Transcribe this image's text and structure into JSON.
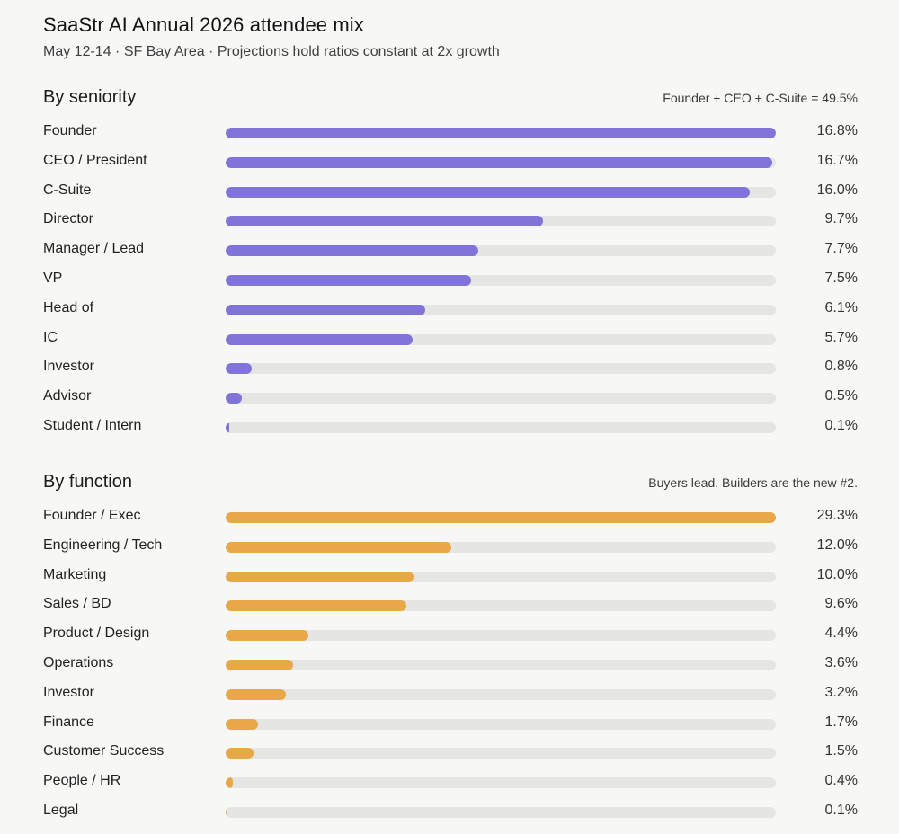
{
  "header": {
    "title": "SaaStr AI Annual 2026 attendee mix",
    "subtitle": "May 12-14 · SF Bay Area · Projections hold ratios constant at 2x growth"
  },
  "colors": {
    "seniority_bar": "#8174d9",
    "function_bar": "#e8a848",
    "track": "#e5e5e3"
  },
  "chart_data": [
    {
      "type": "bar",
      "orientation": "horizontal",
      "title": "By seniority",
      "note": "Founder + CEO + C-Suite = 49.5%",
      "unit": "%",
      "categories": [
        "Founder",
        "CEO / President",
        "C-Suite",
        "Director",
        "Manager / Lead",
        "VP",
        "Head of",
        "IC",
        "Investor",
        "Advisor",
        "Student / Intern"
      ],
      "values": [
        16.8,
        16.7,
        16.0,
        9.7,
        7.7,
        7.5,
        6.1,
        5.7,
        0.8,
        0.5,
        0.1
      ],
      "value_labels": [
        "16.8%",
        "16.7%",
        "16.0%",
        "9.7%",
        "7.7%",
        "7.5%",
        "6.1%",
        "5.7%",
        "0.8%",
        "0.5%",
        "0.1%"
      ],
      "xlim": [
        0,
        16.8
      ]
    },
    {
      "type": "bar",
      "orientation": "horizontal",
      "title": "By function",
      "note": "Buyers lead. Builders are the new #2.",
      "unit": "%",
      "categories": [
        "Founder / Exec",
        "Engineering / Tech",
        "Marketing",
        "Sales / BD",
        "Product / Design",
        "Operations",
        "Investor",
        "Finance",
        "Customer Success",
        "People / HR",
        "Legal"
      ],
      "values": [
        29.3,
        12.0,
        10.0,
        9.6,
        4.4,
        3.6,
        3.2,
        1.7,
        1.5,
        0.4,
        0.1
      ],
      "value_labels": [
        "29.3%",
        "12.0%",
        "10.0%",
        "9.6%",
        "4.4%",
        "3.6%",
        "3.2%",
        "1.7%",
        "1.5%",
        "0.4%",
        "0.1%"
      ],
      "xlim": [
        0,
        29.3
      ]
    }
  ]
}
